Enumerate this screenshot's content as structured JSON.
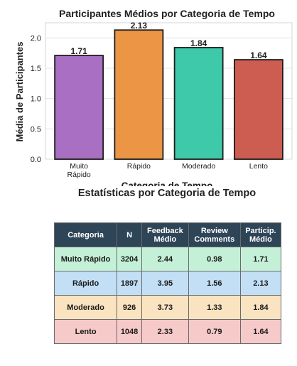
{
  "chart_data": {
    "type": "bar",
    "title": "Participantes Médios por Categoria de Tempo",
    "xlabel": "Categoria de Tempo",
    "ylabel": "Média de Participantes",
    "categories": [
      [
        "Muito",
        "Rápido"
      ],
      [
        "Rápido"
      ],
      [
        "Moderado"
      ],
      [
        "Lento"
      ]
    ],
    "values": [
      1.71,
      2.13,
      1.84,
      1.64
    ],
    "value_labels": [
      "1.71",
      "2.13",
      "1.84",
      "1.64"
    ],
    "colors": [
      "#a86fc2",
      "#ec9544",
      "#3ec9aa",
      "#cd5d50"
    ],
    "ylim": [
      0,
      2.25
    ],
    "yticks": [
      0.0,
      0.5,
      1.0,
      1.5,
      2.0
    ],
    "ytick_labels": [
      "0.0",
      "0.5",
      "1.0",
      "1.5",
      "2.0"
    ],
    "grid": true
  },
  "table": {
    "title": "Estatísticas por Categoria de Tempo",
    "headers": [
      [
        "Categoria"
      ],
      [
        "N"
      ],
      [
        "Feedback",
        "Médio"
      ],
      [
        "Review",
        "Comments"
      ],
      [
        "Particip.",
        "Médio"
      ]
    ],
    "rows": [
      {
        "cells": [
          "Muito Rápido",
          "3204",
          "2.44",
          "0.98",
          "1.71"
        ],
        "color": "#c4f0d8"
      },
      {
        "cells": [
          "Rápido",
          "1897",
          "3.95",
          "1.56",
          "2.13"
        ],
        "color": "#c3dff5"
      },
      {
        "cells": [
          "Moderado",
          "926",
          "3.73",
          "1.33",
          "1.84"
        ],
        "color": "#fae3c0"
      },
      {
        "cells": [
          "Lento",
          "1048",
          "2.33",
          "0.79",
          "1.64"
        ],
        "color": "#f6cac8"
      }
    ]
  }
}
